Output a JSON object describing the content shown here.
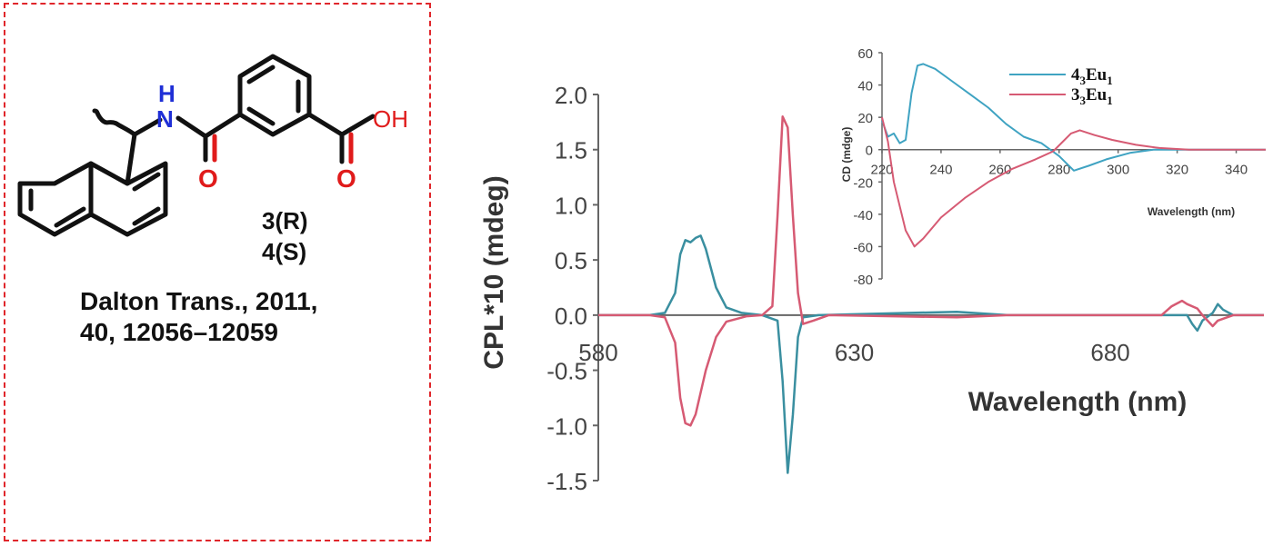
{
  "structure": {
    "atoms": {
      "nh_n": "N",
      "nh_h": "H",
      "acid_o": "O",
      "acid_oh": "OH",
      "amide_o": "O",
      "acid_co": "O"
    },
    "labels": [
      "3(R)",
      "4(S)"
    ],
    "reference": [
      "Dalton Trans., 2011,",
      "40, 12056–12059"
    ],
    "colors": {
      "nitrogen": "#1f2fd6",
      "oxygen": "#e01b1b",
      "bond": "#111111"
    }
  },
  "chart_data": [
    {
      "type": "line",
      "xlabel": "Wavelength (nm)",
      "ylabel": "CPL*10 (mdeg)",
      "xlim": [
        580,
        710
      ],
      "ylim": [
        -1.5,
        2.0
      ],
      "x_ticks": [
        "580",
        "630",
        "680"
      ],
      "y_ticks": [
        "2.0",
        "1.5",
        "1.0",
        "0.5",
        "0.0",
        "-0.5",
        "-1.0",
        "-1.5"
      ],
      "series": [
        {
          "color": "#3a8fa0",
          "points": [
            [
              580,
              0
            ],
            [
              590,
              0
            ],
            [
              593,
              0.02
            ],
            [
              595,
              0.2
            ],
            [
              596,
              0.55
            ],
            [
              597,
              0.68
            ],
            [
              598,
              0.66
            ],
            [
              599,
              0.7
            ],
            [
              600,
              0.72
            ],
            [
              601,
              0.6
            ],
            [
              603,
              0.25
            ],
            [
              605,
              0.07
            ],
            [
              608,
              0.02
            ],
            [
              612,
              0
            ],
            [
              615,
              -0.05
            ],
            [
              616,
              -0.6
            ],
            [
              617,
              -1.43
            ],
            [
              618,
              -0.9
            ],
            [
              619,
              -0.2
            ],
            [
              620,
              -0.02
            ],
            [
              623,
              0
            ],
            [
              650,
              0.03
            ],
            [
              660,
              0
            ],
            [
              695,
              0
            ],
            [
              696,
              -0.08
            ],
            [
              697,
              -0.14
            ],
            [
              698,
              -0.05
            ],
            [
              700,
              0.02
            ],
            [
              701,
              0.1
            ],
            [
              702,
              0.05
            ],
            [
              704,
              0
            ],
            [
              710,
              0
            ]
          ]
        },
        {
          "color": "#d65a73",
          "points": [
            [
              580,
              0
            ],
            [
              590,
              0
            ],
            [
              593,
              -0.02
            ],
            [
              595,
              -0.25
            ],
            [
              596,
              -0.75
            ],
            [
              597,
              -0.98
            ],
            [
              598,
              -1.0
            ],
            [
              599,
              -0.9
            ],
            [
              601,
              -0.5
            ],
            [
              603,
              -0.2
            ],
            [
              605,
              -0.06
            ],
            [
              609,
              -0.01
            ],
            [
              612,
              0
            ],
            [
              614,
              0.08
            ],
            [
              615,
              0.9
            ],
            [
              616,
              1.8
            ],
            [
              617,
              1.7
            ],
            [
              618,
              0.9
            ],
            [
              619,
              0.2
            ],
            [
              620,
              -0.08
            ],
            [
              622,
              -0.05
            ],
            [
              625,
              0
            ],
            [
              650,
              -0.02
            ],
            [
              660,
              0
            ],
            [
              690,
              0
            ],
            [
              692,
              0.08
            ],
            [
              694,
              0.13
            ],
            [
              695,
              0.1
            ],
            [
              697,
              0.06
            ],
            [
              698,
              0
            ],
            [
              700,
              -0.1
            ],
            [
              701,
              -0.05
            ],
            [
              704,
              0
            ],
            [
              710,
              0
            ]
          ]
        }
      ]
    },
    {
      "type": "line",
      "xlabel": "Wavelength (nm)",
      "ylabel": "CD (mdge)",
      "xlim": [
        220,
        350
      ],
      "ylim": [
        -80,
        60
      ],
      "x_ticks": [
        "220",
        "240",
        "260",
        "280",
        "300",
        "320",
        "340"
      ],
      "y_ticks": [
        "60",
        "40",
        "20",
        "0",
        "-20",
        "-40",
        "-60",
        "-80"
      ],
      "legend": "top-right",
      "series": [
        {
          "name_main": "4",
          "name_sub1": "3",
          "name_mid": "Eu",
          "name_sub2": "1",
          "color": "#3fa3c2",
          "points": [
            [
              220,
              18
            ],
            [
              222,
              8
            ],
            [
              224,
              10
            ],
            [
              226,
              4
            ],
            [
              228,
              6
            ],
            [
              230,
              35
            ],
            [
              232,
              52
            ],
            [
              234,
              53
            ],
            [
              238,
              50
            ],
            [
              244,
              42
            ],
            [
              250,
              34
            ],
            [
              256,
              26
            ],
            [
              262,
              16
            ],
            [
              268,
              8
            ],
            [
              274,
              4
            ],
            [
              280,
              -4
            ],
            [
              285,
              -13
            ],
            [
              290,
              -10
            ],
            [
              296,
              -6
            ],
            [
              304,
              -2
            ],
            [
              312,
              0
            ],
            [
              330,
              0
            ],
            [
              350,
              0
            ]
          ]
        },
        {
          "name_main": "3",
          "name_sub1": "3",
          "name_mid": "Eu",
          "name_sub2": "1",
          "color": "#d65a73",
          "points": [
            [
              220,
              20
            ],
            [
              222,
              5
            ],
            [
              224,
              -20
            ],
            [
              228,
              -50
            ],
            [
              231,
              -60
            ],
            [
              234,
              -55
            ],
            [
              240,
              -42
            ],
            [
              248,
              -30
            ],
            [
              256,
              -20
            ],
            [
              264,
              -12
            ],
            [
              272,
              -6
            ],
            [
              278,
              -1
            ],
            [
              284,
              10
            ],
            [
              287,
              12
            ],
            [
              292,
              9
            ],
            [
              298,
              6
            ],
            [
              306,
              3
            ],
            [
              314,
              1
            ],
            [
              324,
              0
            ],
            [
              340,
              0
            ],
            [
              350,
              0
            ]
          ]
        }
      ]
    }
  ]
}
